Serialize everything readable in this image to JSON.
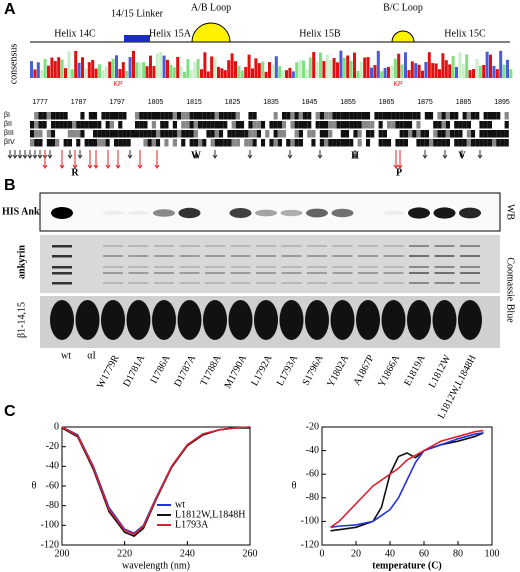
{
  "panel_a": {
    "label": "A",
    "domains": [
      "Helix 14C",
      "14/15 Linker",
      "Helix 15A",
      "A/B Loop",
      "Helix 15B",
      "B/C Loop",
      "Helix 15C"
    ],
    "consensus": "consensus",
    "kp": [
      "KP",
      "KP"
    ],
    "positions": [
      "1777",
      "1787",
      "1797",
      "1805",
      "1815",
      "1825",
      "1835",
      "1845",
      "1855",
      "1865",
      "1875",
      "1885",
      "1895"
    ],
    "rows": [
      "βI",
      "βII",
      "βIII",
      "βIV"
    ],
    "mutations": [
      "R",
      "W",
      "H",
      "P",
      "V"
    ]
  },
  "panel_b": {
    "label": "B",
    "row_labels": [
      "HIS Ank",
      "ankyrin",
      "β1-14,15"
    ],
    "side_labels": [
      "WB",
      "Coomassie Blue"
    ],
    "lanes": [
      "wt",
      "αI",
      "W1779R",
      "D1781A",
      "I1786A",
      "D1787A",
      "T1788A",
      "M1790A",
      "L1792A",
      "L1793A",
      "S1796A",
      "Y1802A",
      "A1867P",
      "Y1866A",
      "E1819A",
      "L1812W",
      "L1812W,L1848H"
    ]
  },
  "panel_c": {
    "label": "C"
  },
  "chart_data": [
    {
      "type": "line",
      "x_label": "wavelength (nm)",
      "y_label": "θ",
      "xlim": [
        200,
        260
      ],
      "xticks": [
        200,
        220,
        240,
        260
      ],
      "ylim": [
        -120,
        0
      ],
      "yticks": [
        0,
        -20,
        -40,
        -60,
        -80,
        -100,
        -120
      ],
      "legend": true,
      "series": [
        {
          "name": "wt",
          "color": "#2233dd",
          "x": [
            200,
            205,
            210,
            215,
            220,
            223,
            226,
            230,
            235,
            240,
            245,
            250,
            255,
            260
          ],
          "values": [
            0,
            -8,
            -40,
            -82,
            -104,
            -108,
            -100,
            -72,
            -40,
            -18,
            -8,
            -3,
            -1,
            0
          ]
        },
        {
          "name": "L1812W,L1848H",
          "color": "#111111",
          "x": [
            200,
            205,
            210,
            215,
            220,
            223,
            226,
            230,
            235,
            240,
            245,
            250,
            255,
            260
          ],
          "values": [
            -1,
            -10,
            -43,
            -86,
            -107,
            -111,
            -103,
            -74,
            -41,
            -19,
            -8,
            -3,
            -1,
            -1
          ]
        },
        {
          "name": "L1793A",
          "color": "#dd2233",
          "x": [
            200,
            205,
            210,
            215,
            220,
            223,
            226,
            230,
            235,
            240,
            245,
            250,
            255,
            260
          ],
          "values": [
            0,
            -9,
            -41,
            -84,
            -105,
            -109,
            -101,
            -73,
            -40,
            -18,
            -7,
            -3,
            -1,
            0
          ]
        }
      ]
    },
    {
      "type": "line",
      "x_label": "temperature (C)",
      "y_label": "θ",
      "xlim": [
        0,
        100
      ],
      "xticks": [
        0,
        20,
        40,
        60,
        80,
        100
      ],
      "ylim": [
        -120,
        -20
      ],
      "yticks": [
        -20,
        -40,
        -60,
        -80,
        -100,
        -120
      ],
      "legend": false,
      "series": [
        {
          "color": "#111111",
          "x": [
            5,
            10,
            20,
            30,
            35,
            40,
            45,
            50,
            55,
            60,
            70,
            80,
            90,
            95
          ],
          "values": [
            -108,
            -107,
            -105,
            -100,
            -88,
            -60,
            -45,
            -42,
            -46,
            -40,
            -35,
            -32,
            -28,
            -25
          ]
        },
        {
          "color": "#2233dd",
          "x": [
            5,
            10,
            20,
            30,
            40,
            45,
            50,
            55,
            60,
            70,
            80,
            90,
            95
          ],
          "values": [
            -105,
            -104,
            -103,
            -100,
            -90,
            -80,
            -65,
            -50,
            -40,
            -35,
            -30,
            -26,
            -25
          ]
        },
        {
          "color": "#dd2233",
          "x": [
            5,
            10,
            20,
            30,
            40,
            45,
            50,
            60,
            70,
            80,
            90,
            95
          ],
          "values": [
            -105,
            -100,
            -85,
            -70,
            -60,
            -55,
            -48,
            -40,
            -32,
            -28,
            -24,
            -23
          ]
        }
      ]
    }
  ]
}
